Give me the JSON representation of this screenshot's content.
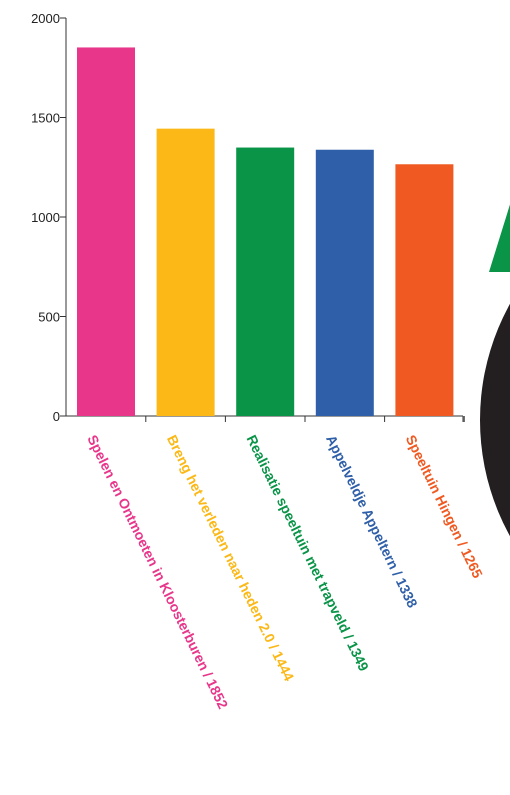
{
  "chart_data": {
    "type": "bar",
    "title": "",
    "xlabel": "",
    "ylabel": "",
    "ylim": [
      0,
      2000
    ],
    "yticks": [
      0,
      500,
      1000,
      1500,
      2000
    ],
    "grid": false,
    "categories": [
      "Spelen en Ontmoeten in Kloosterburen / 1852",
      "Breng het verleden naar heden 2.0 / 1444",
      "Realisatie speeltuin met trapveld / 1349",
      "Appelveldje Appeltern / 1338",
      "Speeltuin Hingen / 1265"
    ],
    "values": [
      1852,
      1444,
      1349,
      1338,
      1265
    ],
    "colors": [
      "#e8368a",
      "#fbb816",
      "#0a9448",
      "#2f5fa8",
      "#f05a22"
    ]
  },
  "side_graphic": {
    "colors": [
      "#0a9448",
      "#231f20"
    ]
  }
}
